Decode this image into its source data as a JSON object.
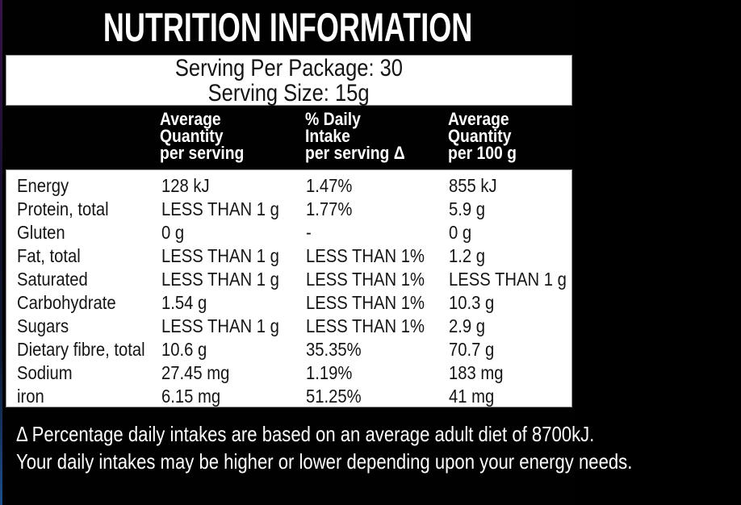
{
  "title": "NUTRITION INFORMATION",
  "serving": {
    "per_package": "Serving Per Package: 30",
    "size": "Serving Size: 15g"
  },
  "table": {
    "columns": [
      "Average\nQuantity\nper serving",
      "% Daily\nIntake\nper serving Δ",
      "Average\nQuantity\nper 100 g"
    ],
    "rows": [
      {
        "label": "Energy",
        "per_serving": "128 kJ",
        "daily_intake": "1.47%",
        "per_100g": "855 kJ"
      },
      {
        "label": "Protein, total",
        "per_serving": "LESS THAN 1 g",
        "daily_intake": "1.77%",
        "per_100g": "5.9 g"
      },
      {
        "label": "Gluten",
        "per_serving": "0 g",
        "daily_intake": "-",
        "per_100g": "0 g"
      },
      {
        "label": "Fat, total",
        "per_serving": "LESS THAN 1 g",
        "daily_intake": "LESS THAN 1%",
        "per_100g": "1.2 g"
      },
      {
        "label": "Saturated",
        "per_serving": "LESS THAN 1 g",
        "daily_intake": "LESS THAN 1%",
        "per_100g": "LESS THAN 1 g"
      },
      {
        "label": "Carbohydrate",
        "per_serving": "1.54 g",
        "daily_intake": "LESS THAN 1%",
        "per_100g": "10.3 g"
      },
      {
        "label": "Sugars",
        "per_serving": "LESS THAN 1 g",
        "daily_intake": "LESS THAN 1%",
        "per_100g": "2.9 g"
      },
      {
        "label": "Dietary fibre, total",
        "per_serving": "10.6 g",
        "daily_intake": "35.35%",
        "per_100g": "70.7 g"
      },
      {
        "label": "Sodium",
        "per_serving": "27.45 mg",
        "daily_intake": "1.19%",
        "per_100g": "183 mg"
      },
      {
        "label": "iron",
        "per_serving": "6.15 mg",
        "daily_intake": "51.25%",
        "per_100g": "41 mg"
      }
    ]
  },
  "footnote": {
    "line1": "Δ Percentage daily intakes are based on an average adult diet of 8700kJ.",
    "line2": "Your daily intakes may be higher or lower depending upon your energy needs."
  },
  "colors": {
    "background": "#010101",
    "panel": "#ffffff",
    "panel_border": "#8f8f8f",
    "text_on_dark": "#ffffff",
    "text_on_light": "#151515",
    "edge_gradient_top": "#38124a",
    "edge_gradient_bottom": "#1d4f8c"
  }
}
